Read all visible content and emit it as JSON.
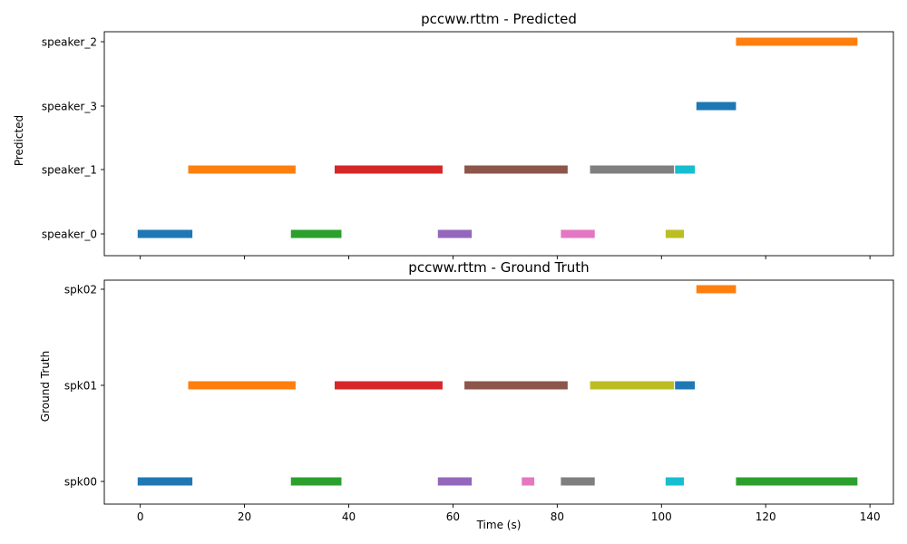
{
  "chart_data": [
    {
      "type": "timeline",
      "title": "pccww.rttm - Predicted",
      "ylabel": "Predicted",
      "xlabel": "",
      "xlim": [
        -6.9,
        144.5
      ],
      "show_xtick_labels": false,
      "xticks": [
        "0",
        "20",
        "40",
        "60",
        "80",
        "100",
        "120",
        "140"
      ],
      "categories": [
        "speaker_0",
        "speaker_1",
        "speaker_3",
        "speaker_2"
      ],
      "segments": [
        {
          "speaker": "speaker_0",
          "start": -0.5,
          "end": 10.0,
          "color": "#1f77b4"
        },
        {
          "speaker": "speaker_1",
          "start": 9.2,
          "end": 29.8,
          "color": "#ff7f0e"
        },
        {
          "speaker": "speaker_0",
          "start": 28.9,
          "end": 38.6,
          "color": "#2ca02c"
        },
        {
          "speaker": "speaker_1",
          "start": 37.3,
          "end": 58.0,
          "color": "#d62728"
        },
        {
          "speaker": "speaker_0",
          "start": 57.1,
          "end": 63.6,
          "color": "#9467bd"
        },
        {
          "speaker": "speaker_1",
          "start": 62.2,
          "end": 82.0,
          "color": "#8c564b"
        },
        {
          "speaker": "speaker_0",
          "start": 80.7,
          "end": 87.2,
          "color": "#e377c2"
        },
        {
          "speaker": "speaker_1",
          "start": 86.3,
          "end": 102.4,
          "color": "#7f7f7f"
        },
        {
          "speaker": "speaker_0",
          "start": 100.8,
          "end": 104.3,
          "color": "#bcbd22"
        },
        {
          "speaker": "speaker_1",
          "start": 102.6,
          "end": 106.4,
          "color": "#17becf"
        },
        {
          "speaker": "speaker_3",
          "start": 106.7,
          "end": 114.3,
          "color": "#1f77b4"
        },
        {
          "speaker": "speaker_2",
          "start": 114.3,
          "end": 137.6,
          "color": "#ff7f0e"
        }
      ]
    },
    {
      "type": "timeline",
      "title": "pccww.rttm - Ground Truth",
      "ylabel": "Ground Truth",
      "xlabel": "Time (s)",
      "xlim": [
        -6.9,
        144.5
      ],
      "show_xtick_labels": true,
      "xticks": [
        "0",
        "20",
        "40",
        "60",
        "80",
        "100",
        "120",
        "140"
      ],
      "categories": [
        "spk00",
        "spk01",
        "spk02"
      ],
      "segments": [
        {
          "speaker": "spk00",
          "start": -0.5,
          "end": 10.0,
          "color": "#1f77b4"
        },
        {
          "speaker": "spk01",
          "start": 9.2,
          "end": 29.8,
          "color": "#ff7f0e"
        },
        {
          "speaker": "spk00",
          "start": 28.9,
          "end": 38.6,
          "color": "#2ca02c"
        },
        {
          "speaker": "spk01",
          "start": 37.3,
          "end": 58.0,
          "color": "#d62728"
        },
        {
          "speaker": "spk00",
          "start": 57.1,
          "end": 63.6,
          "color": "#9467bd"
        },
        {
          "speaker": "spk01",
          "start": 62.2,
          "end": 82.0,
          "color": "#8c564b"
        },
        {
          "speaker": "spk00",
          "start": 73.2,
          "end": 75.6,
          "color": "#e377c2"
        },
        {
          "speaker": "spk00",
          "start": 80.7,
          "end": 87.2,
          "color": "#7f7f7f"
        },
        {
          "speaker": "spk01",
          "start": 86.3,
          "end": 102.4,
          "color": "#bcbd22"
        },
        {
          "speaker": "spk00",
          "start": 100.8,
          "end": 104.3,
          "color": "#17becf"
        },
        {
          "speaker": "spk01",
          "start": 102.6,
          "end": 106.4,
          "color": "#1f77b4"
        },
        {
          "speaker": "spk02",
          "start": 106.7,
          "end": 114.3,
          "color": "#ff7f0e"
        },
        {
          "speaker": "spk00",
          "start": 114.3,
          "end": 137.6,
          "color": "#2ca02c"
        }
      ]
    }
  ]
}
